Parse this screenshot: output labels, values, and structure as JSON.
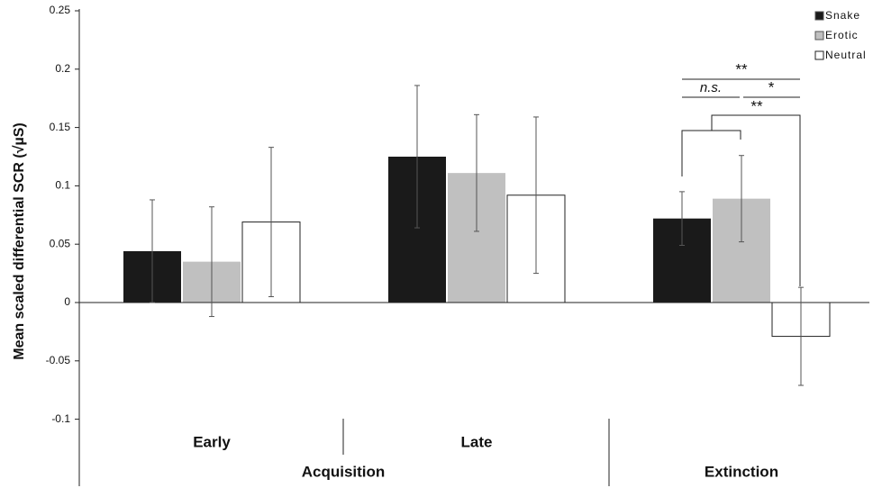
{
  "chart_data": {
    "type": "bar",
    "y_label": "Mean scaled differential SCR (√µS)",
    "categories": [
      "Early",
      "Late",
      null
    ],
    "phases": [
      "Acquisition",
      "Extinction"
    ],
    "series": [
      {
        "name": "Snake",
        "color": "#1a1a1a",
        "values": [
          0.044,
          0.125,
          0.072
        ],
        "errors": [
          0.044,
          0.061,
          0.023
        ]
      },
      {
        "name": "Erotic",
        "color": "#c0c0c0",
        "values": [
          0.035,
          0.111,
          0.089
        ],
        "errors": [
          0.047,
          0.05,
          0.037
        ]
      },
      {
        "name": "Neutral",
        "color": "#ffffff",
        "values": [
          0.069,
          0.092,
          -0.029
        ],
        "errors": [
          0.064,
          0.067,
          0.042
        ]
      }
    ],
    "ylim": [
      -0.1,
      0.25
    ],
    "yticks": [
      0.25,
      0.2,
      0.15,
      0.1,
      0.05,
      0,
      -0.05,
      -0.1
    ],
    "legend": "top-right",
    "annotations": [
      "**",
      "n.s.",
      "*",
      "**"
    ]
  }
}
